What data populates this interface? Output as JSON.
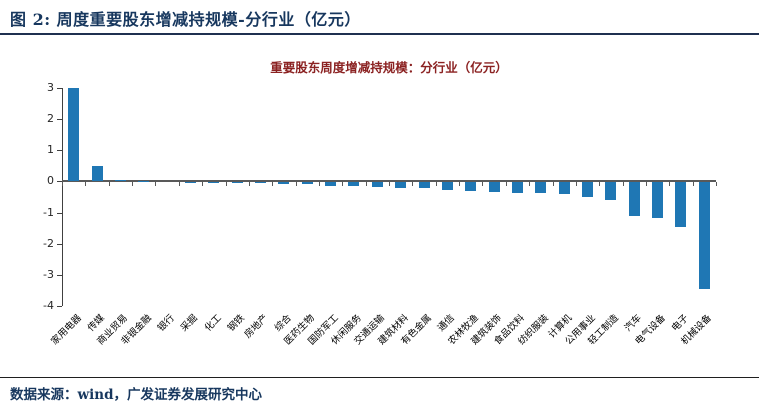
{
  "header": {
    "title": "图  2:  周度重要股东增减持规模-分行业（亿元）"
  },
  "footer": {
    "source": "数据来源：wind，广发证券发展研究中心"
  },
  "colors": {
    "brand_navy": "#17375E",
    "header_rule": "#1F3050",
    "chart_title_red": "#8B2222",
    "bar_blue": "#1F77B4",
    "axis_gray": "#595959"
  },
  "chart_data": {
    "type": "bar",
    "title": "重要股东周度增减持规模：分行业（亿元）",
    "xlabel": "",
    "ylabel": "",
    "ylim": [
      -4,
      3
    ],
    "yticks": [
      3,
      2,
      1,
      0,
      -1,
      -2,
      -3,
      -4
    ],
    "grid": false,
    "legend": null,
    "bar_color": "#1F77B4",
    "categories": [
      "家用电器",
      "传媒",
      "商业贸易",
      "非银金融",
      "银行",
      "采掘",
      "化工",
      "钢铁",
      "房地产",
      "综合",
      "医药生物",
      "国防军工",
      "休闲服务",
      "交通运输",
      "建筑材料",
      "有色金属",
      "通信",
      "农林牧渔",
      "建筑装饰",
      "食品饮料",
      "纺织服装",
      "计算机",
      "公用事业",
      "轻工制造",
      "汽车",
      "电气设备",
      "电子",
      "机械设备"
    ],
    "values": [
      3.0,
      0.5,
      0.03,
      0.01,
      0.0,
      -0.01,
      -0.01,
      -0.02,
      -0.03,
      -0.04,
      -0.05,
      -0.1,
      -0.13,
      -0.16,
      -0.18,
      -0.19,
      -0.24,
      -0.28,
      -0.31,
      -0.33,
      -0.34,
      -0.36,
      -0.46,
      -0.55,
      -1.08,
      -1.13,
      -1.43,
      -3.42
    ]
  }
}
